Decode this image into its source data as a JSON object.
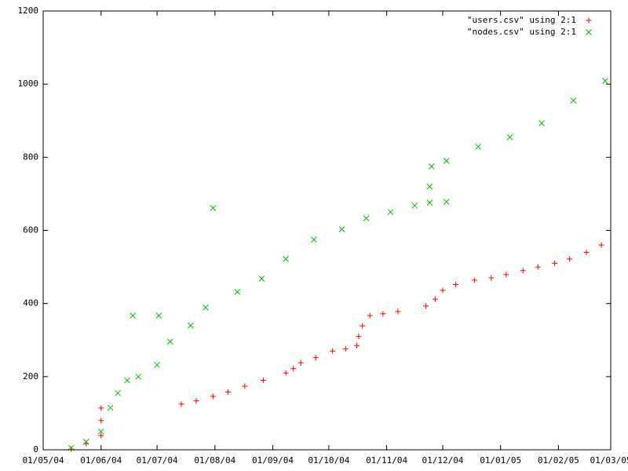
{
  "chart_data": {
    "type": "scatter",
    "xlim": [
      "2004-05-01",
      "2005-03-01"
    ],
    "xticks": [
      {
        "value": "2004-05-01",
        "label": "01/05/04"
      },
      {
        "value": "2004-06-01",
        "label": "01/06/04"
      },
      {
        "value": "2004-07-01",
        "label": "01/07/04"
      },
      {
        "value": "2004-08-01",
        "label": "01/08/04"
      },
      {
        "value": "2004-09-01",
        "label": "01/09/04"
      },
      {
        "value": "2004-10-01",
        "label": "01/10/04"
      },
      {
        "value": "2004-11-01",
        "label": "01/11/04"
      },
      {
        "value": "2004-12-01",
        "label": "01/12/04"
      },
      {
        "value": "2005-01-01",
        "label": "01/01/05"
      },
      {
        "value": "2005-02-01",
        "label": "01/02/05"
      },
      {
        "value": "2005-03-01",
        "label": "01/03/05"
      }
    ],
    "ylim": [
      0,
      1200
    ],
    "yticks": [
      0,
      200,
      400,
      600,
      800,
      1000,
      1200
    ],
    "legend": "top-right",
    "series": [
      {
        "name": "\"users.csv\" using 2:1",
        "color": "#ff0000",
        "marker": "plus",
        "x": [
          "2004-05-16",
          "2004-05-24",
          "2004-06-01",
          "2004-06-01",
          "2004-06-01",
          "2004-07-14",
          "2004-07-22",
          "2004-07-31",
          "2004-08-08",
          "2004-08-17",
          "2004-08-27",
          "2004-09-08",
          "2004-09-12",
          "2004-09-16",
          "2004-09-24",
          "2004-10-03",
          "2004-10-10",
          "2004-10-16",
          "2004-10-17",
          "2004-10-19",
          "2004-10-23",
          "2004-10-30",
          "2004-11-07",
          "2004-11-22",
          "2004-11-27",
          "2004-12-01",
          "2004-12-08",
          "2004-12-18",
          "2004-12-27",
          "2005-01-04",
          "2005-01-13",
          "2005-01-21",
          "2005-01-30",
          "2005-02-07",
          "2005-02-16",
          "2005-02-24"
        ],
        "values": [
          2,
          17,
          39,
          80,
          114,
          125,
          134,
          146,
          158,
          174,
          190,
          210,
          222,
          238,
          252,
          270,
          276,
          285,
          310,
          339,
          367,
          372,
          378,
          393,
          412,
          436,
          452,
          464,
          470,
          479,
          490,
          500,
          510,
          522,
          540,
          560
        ]
      },
      {
        "name": "\"nodes.csv\" using 2:1",
        "color": "#00c000",
        "marker": "cross",
        "x": [
          "2004-05-16",
          "2004-05-24",
          "2004-06-01",
          "2004-06-06",
          "2004-06-10",
          "2004-06-15",
          "2004-06-18",
          "2004-06-21",
          "2004-07-01",
          "2004-07-02",
          "2004-07-08",
          "2004-07-19",
          "2004-07-27",
          "2004-07-31",
          "2004-08-13",
          "2004-08-26",
          "2004-09-08",
          "2004-09-23",
          "2004-10-08",
          "2004-10-21",
          "2004-11-03",
          "2004-11-16",
          "2004-11-24",
          "2004-11-24",
          "2004-11-25",
          "2004-12-03",
          "2004-12-03",
          "2004-12-20",
          "2005-01-06",
          "2005-01-23",
          "2005-02-09",
          "2005-02-26"
        ],
        "values": [
          5,
          22,
          50,
          115,
          155,
          190,
          367,
          200,
          232,
          367,
          296,
          340,
          389,
          661,
          432,
          468,
          522,
          575,
          603,
          633,
          650,
          668,
          676,
          720,
          775,
          790,
          678,
          829,
          855,
          893,
          955,
          1009
        ]
      }
    ]
  }
}
